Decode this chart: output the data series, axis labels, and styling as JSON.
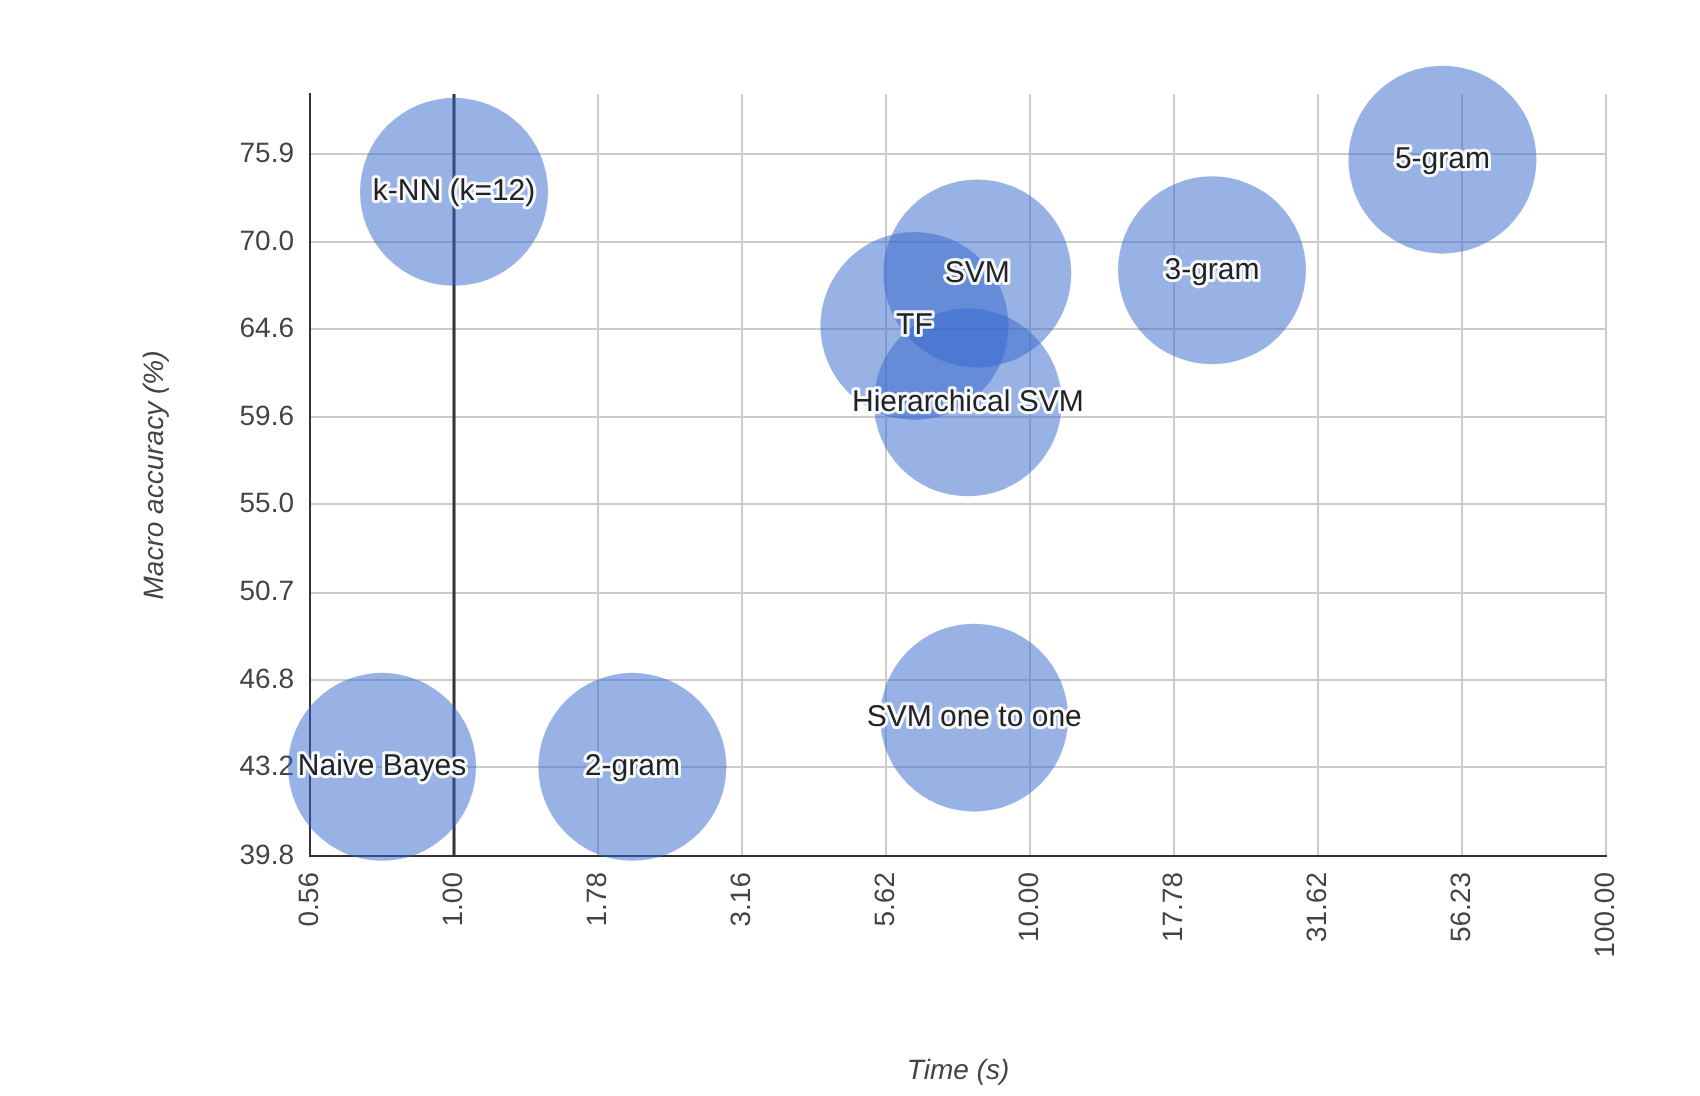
{
  "chart_data": {
    "type": "bubble",
    "xlabel": "Time (s)",
    "ylabel": "Macro accuracy (%)",
    "log": "xy",
    "grid": true,
    "legend": false,
    "xlim": [
      0.5623,
      100
    ],
    "xticks": [
      {
        "value": 0.5623,
        "label": "0.56"
      },
      {
        "value": 1,
        "label": "1.00"
      },
      {
        "value": 1.778,
        "label": "1.78"
      },
      {
        "value": 3.162,
        "label": "3.16"
      },
      {
        "value": 5.623,
        "label": "5.62"
      },
      {
        "value": 10,
        "label": "10.00"
      },
      17.78,
      31.62,
      56.23,
      {
        "value": 100,
        "label": "100.00"
      }
    ],
    "ylim": [
      39.8,
      80.2
    ],
    "yticks": [
      39.8,
      43.2,
      46.8,
      50.7,
      {
        "value": 55,
        "label": "55.0"
      },
      59.6,
      64.6,
      {
        "value": 70,
        "label": "70.0"
      },
      75.9
    ],
    "ref_lines": [
      {
        "axis": "x",
        "value": 1,
        "color": "#333333"
      }
    ],
    "series": [
      {
        "name": "k-NN (k=12)",
        "color": "#3366cc",
        "x": [
          1.0
        ],
        "values": [
          73.3
        ],
        "sizes": [
          1
        ]
      },
      {
        "name": "Naive Bayes",
        "color": "#3366cc",
        "x": [
          0.75
        ],
        "values": [
          43.2
        ],
        "sizes": [
          1
        ]
      },
      {
        "name": "2-gram",
        "color": "#3366cc",
        "x": [
          2.04
        ],
        "values": [
          43.2
        ],
        "sizes": [
          1
        ]
      },
      {
        "name": "SVM",
        "color": "#3366cc",
        "x": [
          8.1
        ],
        "values": [
          68.0
        ],
        "sizes": [
          1
        ]
      },
      {
        "name": "TF",
        "color": "#3366cc",
        "x": [
          6.3
        ],
        "values": [
          64.8
        ],
        "sizes": [
          1
        ]
      },
      {
        "name": "Hierarchical SVM",
        "color": "#3366cc",
        "x": [
          7.8
        ],
        "values": [
          60.4
        ],
        "sizes": [
          1
        ]
      },
      {
        "name": "SVM one to one",
        "color": "#3366cc",
        "x": [
          8.0
        ],
        "values": [
          45.2
        ],
        "sizes": [
          1
        ]
      },
      {
        "name": "3-gram",
        "color": "#3366cc",
        "x": [
          20.7
        ],
        "values": [
          68.2
        ],
        "sizes": [
          1
        ]
      },
      {
        "name": "5-gram",
        "color": "#3366cc",
        "x": [
          52.0
        ],
        "values": [
          75.5
        ],
        "sizes": [
          1
        ]
      }
    ]
  }
}
